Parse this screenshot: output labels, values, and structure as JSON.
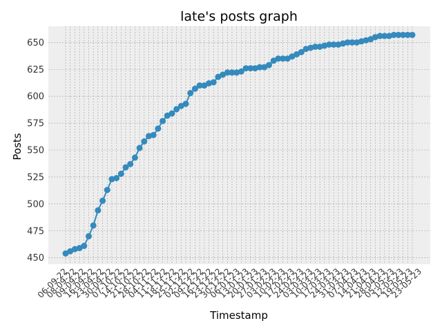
{
  "chart_data": {
    "type": "line",
    "title": "late's posts graph",
    "xlabel": "Timestamp",
    "ylabel": "Posts",
    "ylim": [
      444,
      665
    ],
    "yticks": [
      450,
      475,
      500,
      525,
      550,
      575,
      600,
      625,
      650
    ],
    "grid": true,
    "marker": "circle",
    "series_color": "#348abd",
    "background_color": "#eeeeee",
    "grid_color": "#9e9e9e",
    "x": [
      "06-09-22",
      "08-09-22",
      "09-09-22",
      "12-09-22",
      "16-09-22",
      "19-09-22",
      "23-09-22",
      "26-09-22",
      "30-09-22",
      "03-10-22",
      "07-10-22",
      "11-10-22",
      "14-10-22",
      "18-10-22",
      "21-10-22",
      "25-10-22",
      "28-10-22",
      "01-11-22",
      "04-11-22",
      "08-11-22",
      "11-11-22",
      "15-11-22",
      "18-11-22",
      "22-11-22",
      "25-11-22",
      "29-11-22",
      "02-12-22",
      "06-12-22",
      "09-12-22",
      "13-12-22",
      "16-12-22",
      "20-12-22",
      "23-12-22",
      "27-12-22",
      "30-12-22",
      "03-01-23",
      "06-01-23",
      "10-01-23",
      "13-01-23",
      "17-01-23",
      "20-01-23",
      "24-01-23",
      "27-01-23",
      "31-01-23",
      "03-02-23",
      "07-02-23",
      "10-02-23",
      "14-02-23",
      "17-02-23",
      "21-02-23",
      "24-02-23",
      "28-02-23",
      "03-03-23",
      "07-03-23",
      "10-03-23",
      "14-03-23",
      "17-03-23",
      "21-03-23",
      "24-03-23",
      "28-03-23",
      "31-03-23",
      "04-04-23",
      "07-04-23",
      "11-04-23",
      "14-04-23",
      "18-04-23",
      "21-04-23",
      "25-04-23",
      "28-04-23",
      "02-05-23",
      "05-05-23",
      "09-05-23",
      "12-05-23",
      "16-05-23",
      "19-05-23",
      "23-05-23"
    ],
    "x_tick_labels": [
      "06-09-22",
      "08-09-22",
      "09-09-22",
      "16-09-22",
      "23-09-22",
      "30-09-22",
      "07-10-22",
      "14-10-22",
      "21-10-22",
      "28-10-22",
      "04-11-22",
      "11-11-22",
      "18-11-22",
      "25-11-22",
      "02-12-22",
      "09-12-22",
      "16-12-22",
      "23-12-22",
      "30-12-22",
      "06-01-23",
      "13-01-23",
      "20-01-23",
      "27-01-23",
      "03-02-23",
      "10-02-23",
      "17-02-23",
      "24-02-23",
      "03-03-23",
      "10-03-23",
      "17-03-23",
      "24-03-23",
      "31-03-23",
      "07-04-23",
      "14-04-23",
      "21-04-23",
      "28-04-23",
      "05-05-23",
      "12-05-23",
      "19-05-23",
      "23-05-23"
    ],
    "series": [
      {
        "values": [
          454,
          456,
          458,
          459,
          461,
          470,
          480,
          494,
          503,
          513,
          523,
          524,
          528,
          534,
          537,
          543,
          552,
          558,
          563,
          564,
          570,
          577,
          582,
          584,
          588,
          591,
          593,
          603,
          607,
          610,
          610,
          612,
          613,
          618,
          620,
          622,
          622,
          622,
          623,
          626,
          626,
          626,
          627,
          627,
          629,
          633,
          635,
          635,
          635,
          637,
          639,
          641,
          644,
          645,
          646,
          646,
          647,
          648,
          648,
          648,
          649,
          650,
          650,
          650,
          651,
          652,
          653,
          655,
          656,
          656,
          656,
          657,
          657,
          657,
          657,
          657
        ]
      }
    ]
  }
}
